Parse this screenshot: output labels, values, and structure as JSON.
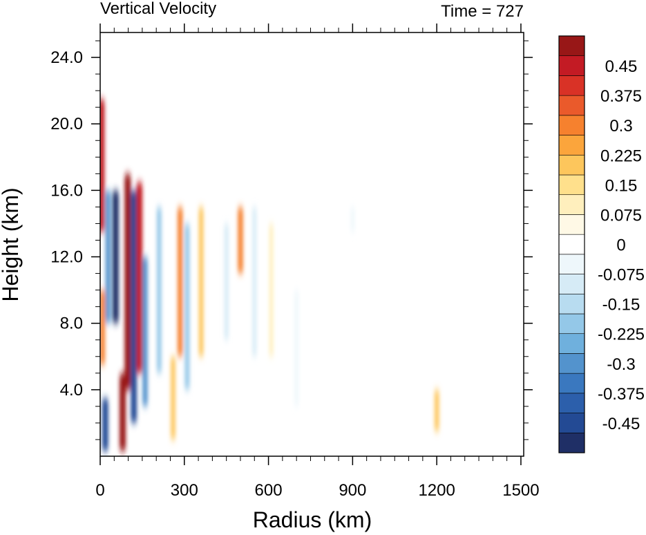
{
  "chart_data": {
    "type": "heatmap",
    "title": "Vertical Velocity",
    "subtitle": "Time = 727",
    "xlabel": "Radius (km)",
    "ylabel": "Height (km)",
    "xlim": [
      0,
      1510
    ],
    "ylim": [
      0,
      25.5
    ],
    "x_ticks": [
      0,
      300,
      600,
      900,
      1200,
      1500
    ],
    "x_tick_labels": [
      "0",
      "300",
      "600",
      "900",
      "1200",
      "1500"
    ],
    "y_ticks": [
      4,
      8,
      12,
      16,
      20,
      24
    ],
    "y_tick_labels": [
      "4.0",
      "8.0",
      "12.0",
      "16.0",
      "20.0",
      "24.0"
    ],
    "colorbar": {
      "min": -0.525,
      "max": 0.525,
      "step": 0.025,
      "tick_values": [
        0.45,
        0.375,
        0.3,
        0.225,
        0.15,
        0.075,
        0,
        -0.075,
        -0.15,
        -0.225,
        -0.3,
        -0.375,
        -0.45
      ],
      "tick_labels": [
        "0.45",
        "0.375",
        "0.3",
        "0.225",
        "0.15",
        "0.075",
        "0",
        "-0.075",
        "-0.15",
        "-0.225",
        "-0.3",
        "-0.375",
        "-0.45"
      ],
      "colors": [
        "#1f2f66",
        "#234a94",
        "#2c5fab",
        "#3a78bf",
        "#5393cd",
        "#6fb0dd",
        "#94c8e8",
        "#b8dcf0",
        "#d6ebf6",
        "#eef7fb",
        "#ffffff",
        "#fff9e6",
        "#ffefbd",
        "#ffe08c",
        "#fdc65c",
        "#fba53c",
        "#f6812e",
        "#ea5a2b",
        "#d93226",
        "#c31b24",
        "#981717"
      ]
    },
    "features": [
      {
        "x": 5,
        "ymin": 13.5,
        "ymax": 21.5,
        "value": 0.45
      },
      {
        "x": 8,
        "ymin": 5.5,
        "ymax": 10,
        "value": 0.3
      },
      {
        "x": 18,
        "ymin": 0.3,
        "ymax": 3.5,
        "value": -0.45
      },
      {
        "x": 28,
        "ymin": 8,
        "ymax": 16,
        "value": -0.3
      },
      {
        "x": 55,
        "ymin": 8,
        "ymax": 16,
        "value": -0.5
      },
      {
        "x": 80,
        "ymin": 0.3,
        "ymax": 5,
        "value": 0.5
      },
      {
        "x": 98,
        "ymin": 4,
        "ymax": 17,
        "value": 0.5
      },
      {
        "x": 120,
        "ymin": 2,
        "ymax": 16,
        "value": -0.45
      },
      {
        "x": 140,
        "ymin": 5,
        "ymax": 16.5,
        "value": 0.45
      },
      {
        "x": 160,
        "ymin": 3,
        "ymax": 12,
        "value": -0.3
      },
      {
        "x": 210,
        "ymin": 5,
        "ymax": 15,
        "value": -0.2
      },
      {
        "x": 260,
        "ymin": 1,
        "ymax": 6,
        "value": 0.2
      },
      {
        "x": 285,
        "ymin": 6,
        "ymax": 15,
        "value": 0.3
      },
      {
        "x": 310,
        "ymin": 4,
        "ymax": 14,
        "value": -0.22
      },
      {
        "x": 360,
        "ymin": 6,
        "ymax": 15,
        "value": 0.2
      },
      {
        "x": 450,
        "ymin": 7,
        "ymax": 14,
        "value": -0.12
      },
      {
        "x": 500,
        "ymin": 11,
        "ymax": 15,
        "value": 0.3
      },
      {
        "x": 550,
        "ymin": 6,
        "ymax": 15,
        "value": -0.08
      },
      {
        "x": 610,
        "ymin": 6,
        "ymax": 14,
        "value": 0.08
      },
      {
        "x": 700,
        "ymin": 3,
        "ymax": 10,
        "value": -0.06
      },
      {
        "x": 900,
        "ymin": 13.5,
        "ymax": 15,
        "value": -0.07
      },
      {
        "x": 1200,
        "ymin": 1.5,
        "ymax": 4,
        "value": 0.2
      }
    ]
  }
}
